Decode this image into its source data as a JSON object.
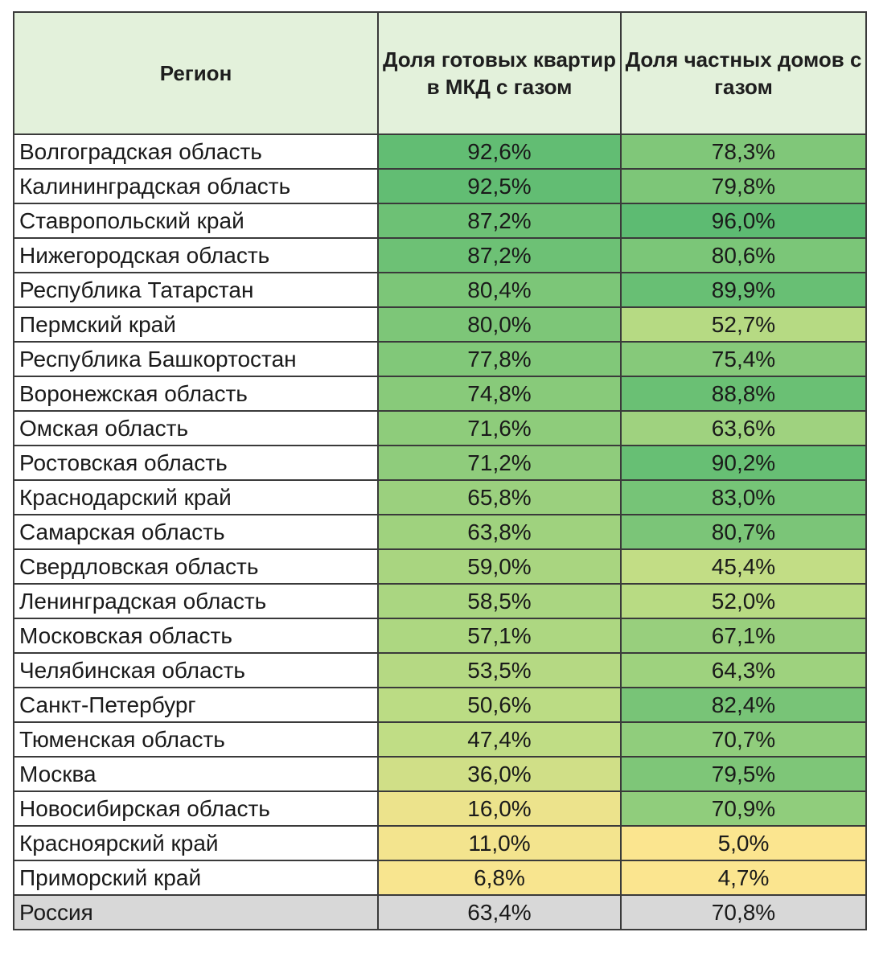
{
  "header": {
    "region": "Регион",
    "mkd": "Доля готовых квартир в МКД с газом",
    "private": "Доля частных домов с газом"
  },
  "rows": [
    {
      "region": "Волгоградская область",
      "mkd": "92,6%",
      "private": "78,3%",
      "mkd_value": 92.6,
      "private_value": 78.3
    },
    {
      "region": "Калининградская область",
      "mkd": "92,5%",
      "private": "79,8%",
      "mkd_value": 92.5,
      "private_value": 79.8
    },
    {
      "region": "Ставропольский край",
      "mkd": "87,2%",
      "private": "96,0%",
      "mkd_value": 87.2,
      "private_value": 96.0
    },
    {
      "region": "Нижегородская область",
      "mkd": "87,2%",
      "private": "80,6%",
      "mkd_value": 87.2,
      "private_value": 80.6
    },
    {
      "region": "Республика Татарстан",
      "mkd": "80,4%",
      "private": "89,9%",
      "mkd_value": 80.4,
      "private_value": 89.9
    },
    {
      "region": "Пермский край",
      "mkd": "80,0%",
      "private": "52,7%",
      "mkd_value": 80.0,
      "private_value": 52.7
    },
    {
      "region": "Республика Башкортостан",
      "mkd": "77,8%",
      "private": "75,4%",
      "mkd_value": 77.8,
      "private_value": 75.4
    },
    {
      "region": "Воронежская область",
      "mkd": "74,8%",
      "private": "88,8%",
      "mkd_value": 74.8,
      "private_value": 88.8
    },
    {
      "region": "Омская область",
      "mkd": "71,6%",
      "private": "63,6%",
      "mkd_value": 71.6,
      "private_value": 63.6
    },
    {
      "region": "Ростовская область",
      "mkd": "71,2%",
      "private": "90,2%",
      "mkd_value": 71.2,
      "private_value": 90.2
    },
    {
      "region": "Краснодарский край",
      "mkd": "65,8%",
      "private": "83,0%",
      "mkd_value": 65.8,
      "private_value": 83.0
    },
    {
      "region": "Самарская область",
      "mkd": "63,8%",
      "private": "80,7%",
      "mkd_value": 63.8,
      "private_value": 80.7
    },
    {
      "region": "Свердловская область",
      "mkd": "59,0%",
      "private": "45,4%",
      "mkd_value": 59.0,
      "private_value": 45.4
    },
    {
      "region": "Ленинградская область",
      "mkd": "58,5%",
      "private": "52,0%",
      "mkd_value": 58.5,
      "private_value": 52.0
    },
    {
      "region": "Московская область",
      "mkd": "57,1%",
      "private": "67,1%",
      "mkd_value": 57.1,
      "private_value": 67.1
    },
    {
      "region": "Челябинская область",
      "mkd": "53,5%",
      "private": "64,3%",
      "mkd_value": 53.5,
      "private_value": 64.3
    },
    {
      "region": "Санкт-Петербург",
      "mkd": "50,6%",
      "private": "82,4%",
      "mkd_value": 50.6,
      "private_value": 82.4
    },
    {
      "region": "Тюменская область",
      "mkd": "47,4%",
      "private": "70,7%",
      "mkd_value": 47.4,
      "private_value": 70.7
    },
    {
      "region": "Москва",
      "mkd": "36,0%",
      "private": "79,5%",
      "mkd_value": 36.0,
      "private_value": 79.5
    },
    {
      "region": "Новосибирская область",
      "mkd": "16,0%",
      "private": "70,9%",
      "mkd_value": 16.0,
      "private_value": 70.9
    },
    {
      "region": "Красноярский край",
      "mkd": "11,0%",
      "private": "5,0%",
      "mkd_value": 11.0,
      "private_value": 5.0
    },
    {
      "region": "Приморский край",
      "mkd": "6,8%",
      "private": "4,7%",
      "mkd_value": 6.8,
      "private_value": 4.7
    }
  ],
  "total": {
    "region": "Россия",
    "mkd": "63,4%",
    "private": "70,8%"
  },
  "colors": {
    "header_bg": "#e3f1db",
    "scale_low": "#fbe58f",
    "scale_mid": "#bcdc84",
    "scale_high": "#5dbb72",
    "total_bg": "#d8d8d8",
    "border": "#3a3a3a"
  }
}
